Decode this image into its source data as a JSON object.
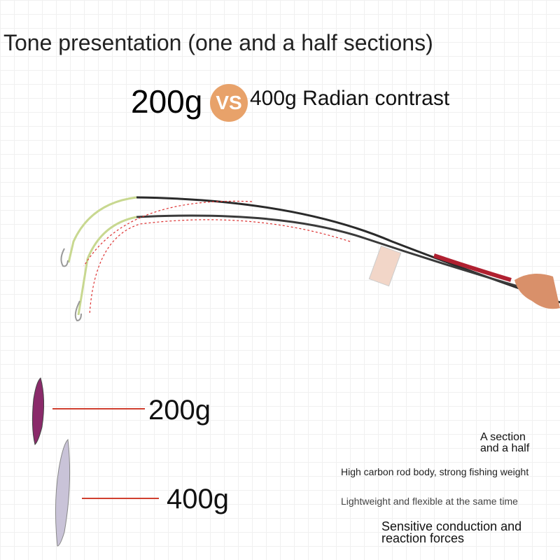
{
  "header": {
    "title": "Tone presentation (one and a half sections)"
  },
  "comparison": {
    "left": "200g",
    "vs": "VS",
    "right": "400g Radian contrast"
  },
  "weights": [
    {
      "label": "200g"
    },
    {
      "label": "400g"
    }
  ],
  "features": {
    "section": [
      "A section",
      "and a half"
    ],
    "items": [
      "High carbon rod body, strong fishing weight",
      "Lightweight and flexible at the same time"
    ],
    "sensitive": [
      "Sensitive conduction and",
      "reaction forces"
    ]
  }
}
